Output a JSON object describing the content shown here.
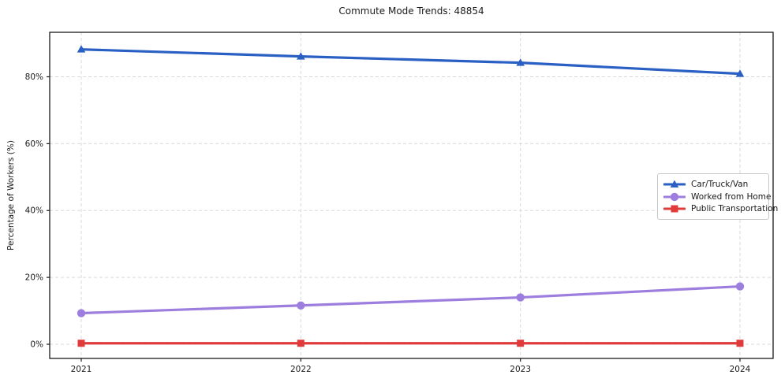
{
  "chart_data": {
    "type": "line",
    "title": "Commute Mode Trends: 48854",
    "xlabel": "",
    "ylabel": "Percentage of Workers (%)",
    "x": [
      2021,
      2022,
      2023,
      2024
    ],
    "x_tick_labels": [
      "2021",
      "2022",
      "2023",
      "2024"
    ],
    "y_ticks": [
      0,
      20,
      40,
      60,
      80
    ],
    "y_tick_labels": [
      "0%",
      "20%",
      "40%",
      "60%",
      "80%"
    ],
    "ylim": [
      -4.2,
      93.3
    ],
    "grid": "dashed light-gray, both axes",
    "legend_position": "center right",
    "series": [
      {
        "name": "Car/Truck/Van",
        "marker": "triangle",
        "color": "#2a5fc4",
        "values": [
          88.2,
          86.1,
          84.2,
          80.9
        ]
      },
      {
        "name": "Worked from Home",
        "marker": "circle",
        "color": "#9d7ede",
        "values": [
          9.3,
          11.6,
          14.0,
          17.3
        ]
      },
      {
        "name": "Public Transportation",
        "marker": "square",
        "color": "#e03b3b",
        "values": [
          0.3,
          0.3,
          0.3,
          0.3
        ]
      }
    ],
    "colors": {
      "axis_border": "#1a1a1a",
      "gridline": "#d9d9d9",
      "background": "#ffffff"
    }
  }
}
